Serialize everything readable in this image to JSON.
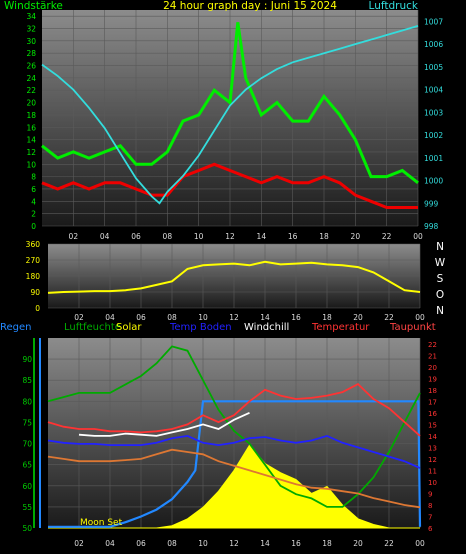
{
  "chart_data": [
    {
      "type": "line",
      "title": "24 hour graph day : Juni 15 2024",
      "y_left_label": "Windstärke",
      "y_right_label": "Luftdruck",
      "x_ticks": [
        "02",
        "04",
        "06",
        "08",
        "10",
        "12",
        "14",
        "16",
        "18",
        "20",
        "22",
        "00"
      ],
      "y_left_ticks": [
        0,
        2,
        4,
        6,
        8,
        10,
        12,
        14,
        16,
        18,
        20,
        22,
        24,
        26,
        28,
        30,
        32,
        34
      ],
      "y_right_ticks": [
        998,
        999,
        1000,
        1001,
        1002,
        1003,
        1004,
        1005,
        1006,
        1007
      ],
      "y_left_range": [
        0,
        35
      ],
      "y_right_range": [
        998,
        1007.5
      ],
      "x_range": [
        0,
        24
      ],
      "series": [
        {
          "color": "#00ee00",
          "axis": "left",
          "x": [
            0,
            1,
            2,
            3,
            4,
            5,
            6,
            7,
            8,
            9,
            10,
            11,
            12,
            12.5,
            13,
            14,
            15,
            16,
            17,
            18,
            19,
            20,
            21,
            22,
            23,
            24
          ],
          "values": [
            13,
            11,
            12,
            11,
            12,
            13,
            10,
            10,
            12,
            17,
            18,
            22,
            20,
            33,
            24,
            18,
            20,
            17,
            17,
            21,
            18,
            14,
            8,
            8,
            9,
            7
          ]
        },
        {
          "color": "#ee0000",
          "axis": "left",
          "x": [
            0,
            1,
            2,
            3,
            4,
            5,
            6,
            7,
            8,
            9,
            10,
            11,
            12,
            13,
            14,
            15,
            16,
            17,
            18,
            19,
            20,
            21,
            22,
            23,
            24
          ],
          "values": [
            7,
            6,
            7,
            6,
            7,
            7,
            6,
            5,
            5,
            8,
            9,
            10,
            9,
            8,
            7,
            8,
            7,
            7,
            8,
            7,
            5,
            4,
            3,
            3,
            3
          ]
        },
        {
          "color": "#33dddd",
          "axis": "right",
          "x": [
            0,
            1,
            2,
            3,
            4,
            5,
            6,
            7,
            7.5,
            8,
            9,
            10,
            11,
            12,
            13,
            14,
            15,
            16,
            17,
            18,
            19,
            20,
            21,
            22,
            23,
            24
          ],
          "values": [
            1005.1,
            1004.6,
            1004.0,
            1003.2,
            1002.3,
            1001.2,
            1000.1,
            999.3,
            999.0,
            999.5,
            1000.2,
            1001.1,
            1002.2,
            1003.3,
            1004.0,
            1004.5,
            1004.9,
            1005.2,
            1005.4,
            1005.6,
            1005.8,
            1006.0,
            1006.2,
            1006.4,
            1006.6,
            1006.8
          ]
        }
      ]
    },
    {
      "type": "line",
      "x_ticks": [
        "02",
        "04",
        "06",
        "08",
        "10",
        "12",
        "14",
        "16",
        "18",
        "20",
        "22",
        "00"
      ],
      "y_left_ticks": [
        0,
        90,
        180,
        270,
        360
      ],
      "y_right_ticks": [
        "N",
        "W",
        "S",
        "O",
        "N"
      ],
      "y_range": [
        0,
        360
      ],
      "x_range": [
        0,
        24
      ],
      "series": [
        {
          "color": "#ffff00",
          "x": [
            0,
            1,
            2,
            3,
            4,
            5,
            6,
            7,
            8,
            9,
            10,
            11,
            12,
            13,
            14,
            15,
            16,
            17,
            18,
            19,
            20,
            21,
            22,
            23,
            24
          ],
          "values": [
            85,
            90,
            92,
            95,
            95,
            100,
            110,
            130,
            150,
            220,
            240,
            245,
            250,
            240,
            260,
            245,
            250,
            255,
            245,
            240,
            230,
            200,
            150,
            100,
            90
          ]
        }
      ]
    },
    {
      "type": "line",
      "legend": [
        "Regen",
        "Luftfeuchte",
        "Solar",
        "Temp Boden",
        "Windchill",
        "Temperatur",
        "Taupunkt"
      ],
      "x_ticks": [
        "02",
        "04",
        "06",
        "08",
        "10",
        "12",
        "14",
        "16",
        "18",
        "20",
        "22",
        "00"
      ],
      "y_left_ticks": [
        50,
        55,
        60,
        65,
        70,
        75,
        80,
        85,
        90
      ],
      "y_right_ticks": [
        6,
        7,
        8,
        9,
        10,
        11,
        12,
        13,
        14,
        15,
        16,
        17,
        18,
        19,
        20,
        21,
        22
      ],
      "y_left_range": [
        50,
        95
      ],
      "y_right_range": [
        6,
        22.5
      ],
      "x_range": [
        0,
        24
      ],
      "annotations": [
        "Moon Set"
      ],
      "series": [
        {
          "name": "Luftfeuchte",
          "color": "#00aa00",
          "axis": "left",
          "x": [
            0,
            1,
            2,
            3,
            4,
            5,
            6,
            7,
            8,
            9,
            10,
            11,
            12,
            13,
            14,
            15,
            16,
            17,
            18,
            19,
            20,
            21,
            22,
            23,
            24
          ],
          "values": [
            80,
            81,
            82,
            82,
            82,
            84,
            86,
            89,
            93,
            92,
            85,
            78,
            73,
            70,
            65,
            60,
            58,
            57,
            55,
            55,
            58,
            62,
            68,
            75,
            82
          ]
        },
        {
          "name": "Temperatur",
          "color": "#ff3333",
          "axis": "right",
          "x": [
            0,
            1,
            2,
            3,
            4,
            5,
            6,
            7,
            8,
            9,
            10,
            11,
            12,
            13,
            14,
            15,
            16,
            17,
            18,
            19,
            20,
            21,
            22,
            23,
            24
          ],
          "values": [
            15.2,
            14.8,
            14.6,
            14.6,
            14.4,
            14.4,
            14.3,
            14.4,
            14.6,
            15.0,
            15.8,
            15.2,
            15.8,
            17.0,
            18.0,
            17.5,
            17.2,
            17.3,
            17.5,
            17.8,
            18.5,
            17.2,
            16.4,
            15.2,
            14.0
          ]
        },
        {
          "name": "Windchill",
          "color": "#ffffff",
          "axis": "right",
          "x": [
            2,
            3,
            4,
            5,
            6,
            7,
            8,
            9,
            10,
            11,
            12,
            13
          ],
          "values": [
            14.1,
            14.0,
            14.0,
            14.2,
            14.1,
            14.0,
            14.3,
            14.6,
            15.0,
            14.6,
            15.4,
            16.0
          ]
        },
        {
          "name": "Temp Boden",
          "color": "#2222ff",
          "axis": "right",
          "x": [
            0,
            1,
            2,
            3,
            4,
            5,
            6,
            7,
            8,
            9,
            10,
            11,
            12,
            13,
            14,
            15,
            16,
            17,
            18,
            19,
            20,
            21,
            22,
            23,
            24
          ],
          "values": [
            13.6,
            13.4,
            13.3,
            13.3,
            13.2,
            13.2,
            13.2,
            13.4,
            13.8,
            14.0,
            13.4,
            13.2,
            13.4,
            13.8,
            13.9,
            13.6,
            13.4,
            13.6,
            14.0,
            13.4,
            13.0,
            12.6,
            12.2,
            11.8,
            11.2
          ]
        },
        {
          "name": "Taupunkt",
          "color": "#dd7733",
          "axis": "right",
          "x": [
            0,
            1,
            2,
            3,
            4,
            5,
            6,
            7,
            8,
            9,
            10,
            11,
            12,
            13,
            14,
            15,
            16,
            17,
            18,
            19,
            20,
            21,
            22,
            23,
            24
          ],
          "values": [
            12.2,
            12.0,
            11.8,
            11.8,
            11.8,
            11.9,
            12.0,
            12.4,
            12.8,
            12.6,
            12.4,
            11.8,
            11.4,
            11.0,
            10.6,
            10.2,
            9.8,
            9.5,
            9.4,
            9.2,
            9.0,
            8.6,
            8.3,
            8.0,
            7.8
          ]
        },
        {
          "name": "Regen",
          "color": "#2288ff",
          "axis": "right",
          "x": [
            0,
            4,
            5,
            6,
            7,
            8,
            9,
            9.5,
            10,
            11,
            12,
            13,
            14,
            16,
            18,
            20,
            22,
            23.9,
            24
          ],
          "values": [
            6.1,
            6.1,
            6.5,
            7.0,
            7.6,
            8.5,
            10.0,
            11.0,
            17.0,
            17.0,
            17.0,
            17.0,
            17.0,
            17.0,
            17.0,
            17.0,
            17.0,
            17.0,
            6.1
          ]
        },
        {
          "name": "Solar",
          "color": "#ffff00",
          "axis": "right",
          "x": [
            0,
            7,
            8,
            9,
            10,
            11,
            12,
            13,
            14,
            15,
            16,
            17,
            18,
            19,
            20,
            21,
            22,
            24
          ],
          "values": [
            6,
            6,
            6.2,
            6.8,
            7.8,
            9.2,
            11.0,
            13.2,
            11.6,
            10.8,
            10.2,
            9.0,
            9.6,
            8.0,
            6.8,
            6.3,
            6,
            6
          ]
        }
      ]
    }
  ]
}
